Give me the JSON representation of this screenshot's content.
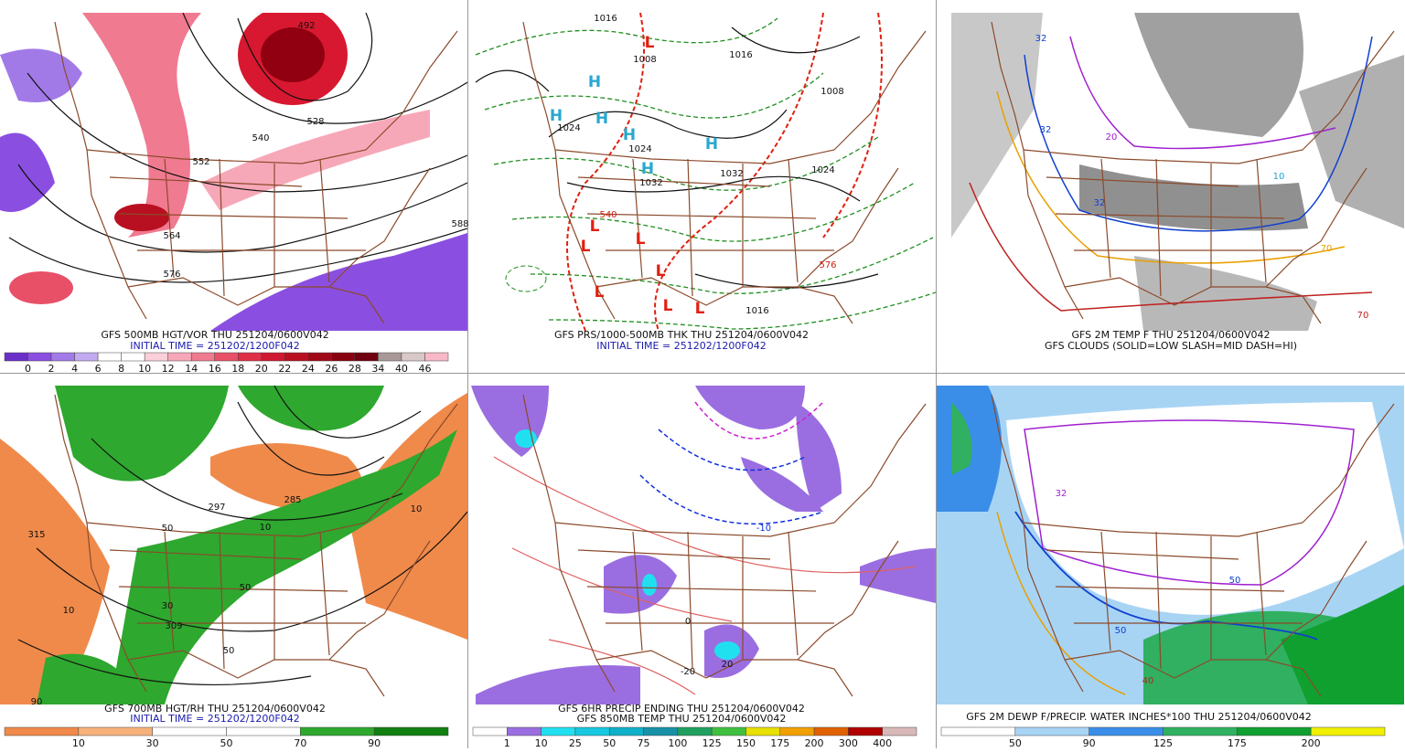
{
  "panels": [
    {
      "caption": [
        "GFS 500MB HGT/VOR THU 251204/0600V042",
        "INITIAL TIME = 251202/1200F042"
      ],
      "colorbar": {
        "labels": [
          0,
          2,
          4,
          6,
          8,
          10,
          12,
          14,
          16,
          18,
          20,
          22,
          24,
          26,
          28,
          34,
          40,
          46
        ],
        "colors": [
          "#6a2fc9",
          "#8a4fe0",
          "#a27ae8",
          "#c2aaf0",
          "#ffffff",
          "#ffffff",
          "#fbd0d8",
          "#f7a8b8",
          "#f07a90",
          "#e85068",
          "#e03048",
          "#d01830",
          "#b81020",
          "#a00818",
          "#880010",
          "#700010",
          "#a89898",
          "#d8c8c8",
          "#f8b8c8"
        ]
      },
      "labels": [
        "492",
        "528",
        "540",
        "552",
        "564",
        "576",
        "588"
      ]
    },
    {
      "caption": [
        "GFS PRS/1000-500MB THK THU 251204/0600V042",
        "INITIAL TIME = 251202/1200F042"
      ],
      "labels": [
        "1016",
        "1008",
        "1016",
        "1008",
        "1024",
        "1024",
        "1032",
        "1032",
        "1024",
        "540",
        "576",
        "1016",
        "H",
        "H",
        "H",
        "H",
        "H",
        "H",
        "L",
        "L",
        "L",
        "L",
        "L",
        "L",
        "L",
        "L"
      ]
    },
    {
      "caption": [
        "GFS 2M TEMP F THU 251204/0600V042",
        "GFS CLOUDS (SOLID=LOW SLASH=MID DASH=HI)"
      ],
      "labels": [
        "32",
        "32",
        "20",
        "10",
        "70",
        "32",
        "70"
      ]
    },
    {
      "caption": [
        "GFS 700MB HGT/RH THU 251204/0600V042",
        "INITIAL TIME = 251202/1200F042"
      ],
      "colorbar": {
        "labels": [
          10,
          30,
          50,
          70,
          90
        ],
        "colors": [
          "#f08a4a",
          "#f6b27a",
          "#ffffff",
          "#ffffff",
          "#2ea82e",
          "#108010"
        ]
      },
      "labels": [
        "297",
        "285",
        "10",
        "50",
        "309",
        "50",
        "90",
        "315",
        "10",
        "50",
        "10",
        "30"
      ]
    },
    {
      "caption": [
        "GFS 6HR PRECIP ENDING THU 251204/0600V042",
        "GFS 850MB TEMP THU 251204/0600V042"
      ],
      "colorbar": {
        "labels": [
          1,
          10,
          25,
          50,
          75,
          100,
          125,
          150,
          175,
          200,
          300,
          400
        ],
        "colors": [
          "#ffffff",
          "#9a6ee0",
          "#20e0f0",
          "#18c8e0",
          "#10b0c8",
          "#1890a8",
          "#20a060",
          "#40c040",
          "#e8e000",
          "#f0a000",
          "#e06000",
          "#b00000",
          "#d8b8b8"
        ]
      },
      "labels": [
        "-10",
        "20",
        "-20",
        "0"
      ]
    },
    {
      "caption": [
        "GFS 2M DEWP F/PRECIP. WATER INCHES*100 THU 251204/0600V042"
      ],
      "colorbar": {
        "labels": [
          50,
          90,
          125,
          175,
          200
        ],
        "colors": [
          "#ffffff",
          "#a8d4f4",
          "#3a8ee8",
          "#30b060",
          "#10a030",
          "#f0f000"
        ]
      },
      "labels": [
        "32",
        "50",
        "40",
        "50"
      ]
    }
  ]
}
